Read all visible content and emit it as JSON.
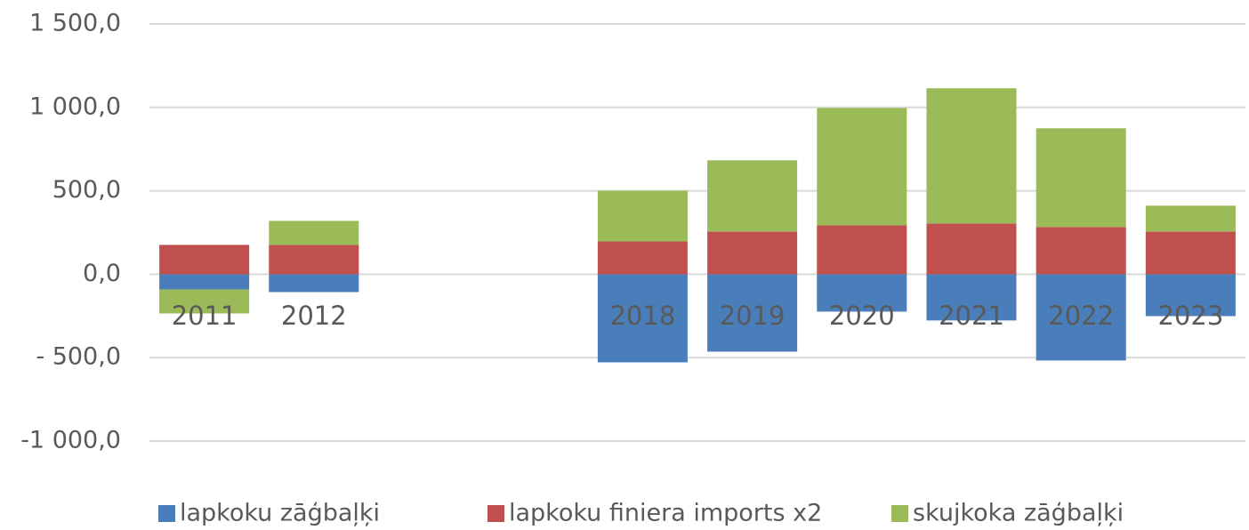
{
  "chart_data": {
    "type": "bar",
    "stacked": true,
    "categories": [
      "2011",
      "2012",
      null,
      null,
      "2018",
      "2019",
      "2020",
      "2021",
      "2022",
      "2023"
    ],
    "series": [
      {
        "name": "lapkoku zāģbaļķi",
        "color": "#4a7ebb",
        "values": [
          -91,
          -107,
          null,
          null,
          -528,
          -464,
          -224,
          -277,
          -517,
          -251
        ]
      },
      {
        "name": "lapkoku finiera imports x2",
        "color": "#c0504d",
        "values": [
          176,
          176,
          null,
          null,
          197,
          256,
          293,
          304,
          283,
          256
        ]
      },
      {
        "name": "skujkoka zāģbaļķi",
        "color": "#9bbb59",
        "values": [
          -144,
          144,
          null,
          null,
          304,
          427,
          704,
          811,
          592,
          155
        ]
      }
    ],
    "ylim": [
      -1000,
      1500
    ],
    "yticks": [
      {
        "value": -1000,
        "label": "-1 000,0"
      },
      {
        "value": -500,
        "label": "- 500,0"
      },
      {
        "value": 0,
        "label": "0,0"
      },
      {
        "value": 500,
        "label": "500,0"
      },
      {
        "value": 1000,
        "label": "1 000,0"
      },
      {
        "value": 1500,
        "label": "1 500,0"
      }
    ],
    "grid": true,
    "legend": "bottom"
  }
}
